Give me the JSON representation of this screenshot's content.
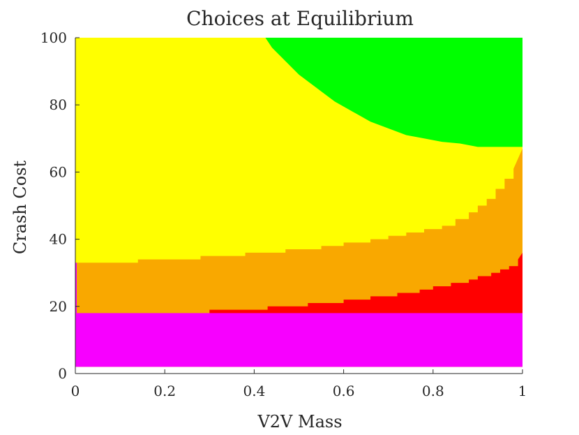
{
  "chart_data": {
    "type": "heatmap",
    "title": "Choices at Equilibrium",
    "xlabel": "V2V Mass",
    "ylabel": "Crash Cost",
    "xlim": [
      0,
      1
    ],
    "ylim": [
      0,
      100
    ],
    "xticks": [
      0,
      0.2,
      0.4,
      0.6,
      0.8,
      1
    ],
    "xtick_labels": [
      "0",
      "0.2",
      "0.4",
      "0.6",
      "0.8",
      "1"
    ],
    "yticks": [
      0,
      20,
      40,
      60,
      80,
      100
    ],
    "ytick_labels": [
      "0",
      "20",
      "40",
      "60",
      "80",
      "100"
    ],
    "grid": false,
    "legend": "none",
    "data_ylim": [
      2,
      100
    ],
    "region_colors": {
      "magenta": "#f700ff",
      "red": "#ff0000",
      "orange": "#f9a800",
      "yellow": "#ffff00",
      "green": "#00ff00"
    },
    "boundaries": {
      "magenta_top": {
        "x": [
          0,
          1
        ],
        "y": [
          18,
          18
        ]
      },
      "red_top": {
        "x": [
          0.3,
          0.3,
          0.43,
          0.43,
          0.52,
          0.52,
          0.6,
          0.6,
          0.66,
          0.66,
          0.72,
          0.72,
          0.77,
          0.77,
          0.8,
          0.8,
          0.84,
          0.84,
          0.88,
          0.88,
          0.9,
          0.9,
          0.93,
          0.93,
          0.95,
          0.95,
          0.97,
          0.97,
          0.99,
          0.99,
          1
        ],
        "y": [
          18,
          19,
          19,
          20,
          20,
          21,
          21,
          22,
          22,
          23,
          23,
          24,
          24,
          25,
          25,
          26,
          26,
          27,
          27,
          28,
          28,
          29,
          29,
          30,
          30,
          31,
          31,
          32,
          32,
          34,
          36
        ]
      },
      "orange_top": {
        "x": [
          0,
          0.14,
          0.14,
          0.28,
          0.28,
          0.38,
          0.38,
          0.47,
          0.47,
          0.55,
          0.55,
          0.6,
          0.6,
          0.66,
          0.66,
          0.7,
          0.7,
          0.74,
          0.74,
          0.78,
          0.78,
          0.82,
          0.82,
          0.85,
          0.85,
          0.88,
          0.88,
          0.9,
          0.9,
          0.92,
          0.92,
          0.94,
          0.94,
          0.96,
          0.96,
          0.98,
          0.98,
          1
        ],
        "y": [
          33,
          33,
          34,
          34,
          35,
          35,
          36,
          36,
          37,
          37,
          38,
          38,
          39,
          39,
          40,
          40,
          41,
          41,
          42,
          42,
          43,
          43,
          44,
          44,
          46,
          46,
          48,
          48,
          50,
          50,
          52,
          52,
          55,
          55,
          58,
          58,
          61,
          67
        ]
      },
      "green_bottom": {
        "x": [
          0.425,
          0.44,
          0.47,
          0.5,
          0.54,
          0.58,
          0.62,
          0.66,
          0.7,
          0.74,
          0.78,
          0.82,
          0.86,
          0.9,
          1
        ],
        "y": [
          100,
          97,
          93,
          89,
          85,
          81,
          78,
          75,
          73,
          71,
          70,
          69,
          68.5,
          67.5,
          67.5
        ]
      }
    }
  }
}
